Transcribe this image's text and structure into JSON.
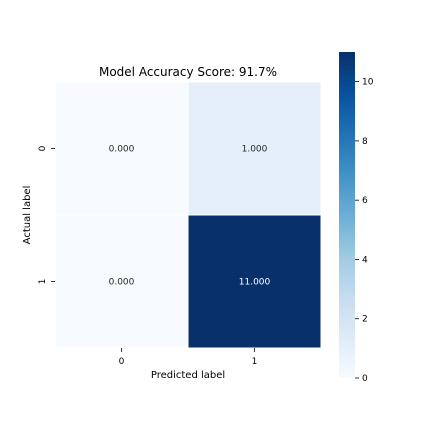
{
  "chart_data": {
    "type": "heatmap",
    "title": "Model Accuracy Score: 91.7%",
    "xlabel": "Predicted label",
    "ylabel": "Actual label",
    "x_categories": [
      "0",
      "1"
    ],
    "y_categories": [
      "0",
      "1"
    ],
    "values": [
      [
        0,
        1
      ],
      [
        0,
        11
      ]
    ],
    "annotations": [
      [
        "0.000",
        "1.000"
      ],
      [
        "0.000",
        "11.000"
      ]
    ],
    "colormap": "Blues",
    "colorbar": {
      "min": 0,
      "max": 11,
      "ticks": [
        "0",
        "2",
        "4",
        "6",
        "8",
        "10"
      ]
    },
    "colors": {
      "low": "#f7fbff",
      "high": "#08306b",
      "cell_1_0": "#e3eef8",
      "gridline": "#ffffff"
    }
  }
}
